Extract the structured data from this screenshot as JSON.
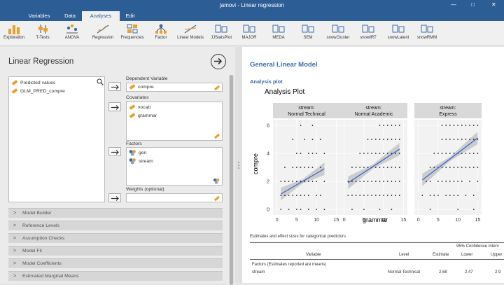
{
  "app_title": "jamovi - Linear regression",
  "window_controls": {
    "minimize": "—",
    "maximize": "□",
    "close": "✕"
  },
  "tabs": [
    {
      "label": "Variables"
    },
    {
      "label": "Data"
    },
    {
      "label": "Analyses"
    },
    {
      "label": "Edit"
    }
  ],
  "ribbon": [
    {
      "label": "Exploration",
      "icon": "exploration-icon"
    },
    {
      "label": "T-Tests",
      "icon": "t-tests-icon"
    },
    {
      "label": "ANOVA",
      "icon": "anova-icon"
    },
    {
      "label": "Regression",
      "icon": "regression-icon"
    },
    {
      "label": "Frequencies",
      "icon": "frequencies-icon"
    },
    {
      "label": "Factor",
      "icon": "factor-icon"
    },
    {
      "label": "Linear Models",
      "icon": "linear-models-icon"
    },
    {
      "label": "JJStatsPlot",
      "icon": "jjstatsplot-icon"
    },
    {
      "label": "MAJOR",
      "icon": "major-icon"
    },
    {
      "label": "MEDA",
      "icon": "meda-icon"
    },
    {
      "label": "SEM",
      "icon": "sem-icon"
    },
    {
      "label": "snowCluster",
      "icon": "snowcluster-icon"
    },
    {
      "label": "snowIRT",
      "icon": "snowirt-icon"
    },
    {
      "label": "snowLatent",
      "icon": "snowlatent-icon"
    },
    {
      "label": "snowRMM",
      "icon": "snowrmm-icon"
    }
  ],
  "left": {
    "title": "Linear Regression",
    "variables": [
      "Predicted values",
      "GLM_PRED_compre"
    ],
    "dependent_label": "Dependent Variable",
    "dependent": [
      "compre"
    ],
    "covariates_label": "Covariates",
    "covariates": [
      "vocab",
      "grammar"
    ],
    "factors_label": "Factors",
    "factors": [
      "gen",
      "stream"
    ],
    "weights_label": "Weights (optional)",
    "sections": [
      "Model Builder",
      "Reference Levels",
      "Assumption Checks",
      "Model Fit",
      "Model Coefficients",
      "Estimated Marginal Means"
    ]
  },
  "results": {
    "title": "General Linear Model",
    "plot_subtitle": "Analysis plot",
    "table_title": "Estimates and effect sizes for categorical predictors",
    "table": {
      "ci_header": "95% Confidence Interv",
      "columns": [
        "Variable",
        "Level",
        "Estimate",
        "Lower",
        "Upper"
      ],
      "group_row": "Factors (Estimates reported are means)",
      "rows": [
        {
          "variable": "stream",
          "level": "Normal Technical",
          "estimate": "2.68",
          "lower": "2.47",
          "upper": "2.9"
        }
      ]
    }
  },
  "chart_data": {
    "type": "scatter",
    "title": "Analysis Plot",
    "xlabel": "grammar",
    "ylabel": "compre",
    "xlim": [
      -1,
      16
    ],
    "ylim": [
      -0.4,
      6.4
    ],
    "x_ticks": [
      "0",
      "5",
      "10",
      "15"
    ],
    "y_ticks": [
      "0",
      "2",
      "4",
      "6"
    ],
    "facet_label_prefix": "stream:",
    "colors": {
      "line": "#3366cc",
      "band": "#c8c8c8",
      "points": "#111111",
      "strip": "#d9d9d9",
      "panel": "#f2f2f2"
    },
    "facets": [
      {
        "name": "Normal Technical",
        "fit": {
          "x0": 1,
          "y0": 1.1,
          "x1": 12,
          "y1": 2.9
        },
        "points": [
          [
            1,
            0
          ],
          [
            3,
            0
          ],
          [
            5,
            0
          ],
          [
            6,
            0
          ],
          [
            8,
            0
          ],
          [
            10,
            0
          ],
          [
            12,
            0
          ],
          [
            1,
            1
          ],
          [
            2,
            1
          ],
          [
            3,
            1
          ],
          [
            4,
            1
          ],
          [
            5,
            1
          ],
          [
            6,
            1
          ],
          [
            7,
            1
          ],
          [
            8,
            1
          ],
          [
            10,
            1
          ],
          [
            11,
            1
          ],
          [
            1,
            2
          ],
          [
            2,
            2
          ],
          [
            3,
            2
          ],
          [
            4,
            2
          ],
          [
            5,
            2
          ],
          [
            6,
            2
          ],
          [
            7,
            2
          ],
          [
            8,
            2
          ],
          [
            9,
            2
          ],
          [
            10,
            2
          ],
          [
            12,
            2
          ],
          [
            2,
            3
          ],
          [
            4,
            3
          ],
          [
            5,
            3
          ],
          [
            6,
            3
          ],
          [
            7,
            3
          ],
          [
            8,
            3
          ],
          [
            9,
            3
          ],
          [
            11,
            3
          ],
          [
            5,
            4
          ],
          [
            6,
            4
          ],
          [
            8,
            4
          ],
          [
            9,
            4
          ],
          [
            10,
            4
          ],
          [
            12,
            4
          ],
          [
            4,
            5
          ],
          [
            7,
            5
          ],
          [
            9,
            5
          ],
          [
            11,
            5
          ],
          [
            6,
            6
          ],
          [
            9,
            6
          ]
        ]
      },
      {
        "name": "Normal Academic",
        "fit": {
          "x0": 1,
          "y0": 1.9,
          "x1": 14,
          "y1": 4.3
        },
        "points": [
          [
            2,
            0
          ],
          [
            5,
            0
          ],
          [
            9,
            0
          ],
          [
            12,
            0
          ],
          [
            1,
            1
          ],
          [
            2,
            1
          ],
          [
            3,
            1
          ],
          [
            4,
            1
          ],
          [
            5,
            1
          ],
          [
            6,
            1
          ],
          [
            7,
            1
          ],
          [
            8,
            1
          ],
          [
            9,
            1
          ],
          [
            10,
            1
          ],
          [
            11,
            1
          ],
          [
            12,
            1
          ],
          [
            13,
            1
          ],
          [
            14,
            1
          ],
          [
            1,
            2
          ],
          [
            2,
            2
          ],
          [
            3,
            2
          ],
          [
            4,
            2
          ],
          [
            5,
            2
          ],
          [
            6,
            2
          ],
          [
            7,
            2
          ],
          [
            8,
            2
          ],
          [
            9,
            2
          ],
          [
            10,
            2
          ],
          [
            11,
            2
          ],
          [
            12,
            2
          ],
          [
            13,
            2
          ],
          [
            14,
            2
          ],
          [
            2,
            3
          ],
          [
            3,
            3
          ],
          [
            4,
            3
          ],
          [
            5,
            3
          ],
          [
            6,
            3
          ],
          [
            7,
            3
          ],
          [
            8,
            3
          ],
          [
            9,
            3
          ],
          [
            10,
            3
          ],
          [
            11,
            3
          ],
          [
            12,
            3
          ],
          [
            13,
            3
          ],
          [
            14,
            3
          ],
          [
            4,
            4
          ],
          [
            5,
            4
          ],
          [
            6,
            4
          ],
          [
            7,
            4
          ],
          [
            8,
            4
          ],
          [
            9,
            4
          ],
          [
            10,
            4
          ],
          [
            11,
            4
          ],
          [
            12,
            4
          ],
          [
            13,
            4
          ],
          [
            14,
            4
          ],
          [
            6,
            5
          ],
          [
            7,
            5
          ],
          [
            8,
            5
          ],
          [
            9,
            5
          ],
          [
            10,
            5
          ],
          [
            11,
            5
          ],
          [
            12,
            5
          ],
          [
            13,
            5
          ],
          [
            14,
            5
          ],
          [
            9,
            6
          ],
          [
            10,
            6
          ],
          [
            11,
            6
          ],
          [
            12,
            6
          ],
          [
            13,
            6
          ],
          [
            14,
            6
          ]
        ]
      },
      {
        "name": "Express",
        "fit": {
          "x0": 1,
          "y0": 2.1,
          "x1": 15,
          "y1": 5.1
        },
        "points": [
          [
            3,
            0
          ],
          [
            10,
            0
          ],
          [
            14,
            0
          ],
          [
            1,
            1
          ],
          [
            3,
            1
          ],
          [
            4,
            1
          ],
          [
            5,
            1
          ],
          [
            7,
            1
          ],
          [
            8,
            1
          ],
          [
            9,
            1
          ],
          [
            10,
            1
          ],
          [
            12,
            1
          ],
          [
            14,
            1
          ],
          [
            2,
            2
          ],
          [
            3,
            2
          ],
          [
            5,
            2
          ],
          [
            6,
            2
          ],
          [
            7,
            2
          ],
          [
            8,
            2
          ],
          [
            9,
            2
          ],
          [
            10,
            2
          ],
          [
            11,
            2
          ],
          [
            13,
            2
          ],
          [
            15,
            2
          ],
          [
            3,
            3
          ],
          [
            4,
            3
          ],
          [
            5,
            3
          ],
          [
            6,
            3
          ],
          [
            7,
            3
          ],
          [
            8,
            3
          ],
          [
            9,
            3
          ],
          [
            10,
            3
          ],
          [
            11,
            3
          ],
          [
            12,
            3
          ],
          [
            13,
            3
          ],
          [
            14,
            3
          ],
          [
            15,
            3
          ],
          [
            4,
            4
          ],
          [
            5,
            4
          ],
          [
            6,
            4
          ],
          [
            7,
            4
          ],
          [
            8,
            4
          ],
          [
            9,
            4
          ],
          [
            10,
            4
          ],
          [
            11,
            4
          ],
          [
            12,
            4
          ],
          [
            13,
            4
          ],
          [
            14,
            4
          ],
          [
            15,
            4
          ],
          [
            6,
            5
          ],
          [
            7,
            5
          ],
          [
            8,
            5
          ],
          [
            9,
            5
          ],
          [
            10,
            5
          ],
          [
            11,
            5
          ],
          [
            12,
            5
          ],
          [
            13,
            5
          ],
          [
            14,
            5
          ],
          [
            15,
            5
          ],
          [
            6,
            6
          ],
          [
            7,
            6
          ],
          [
            8,
            6
          ],
          [
            9,
            6
          ],
          [
            10,
            6
          ],
          [
            11,
            6
          ],
          [
            12,
            6
          ],
          [
            13,
            6
          ],
          [
            14,
            6
          ],
          [
            15,
            6
          ]
        ]
      }
    ]
  }
}
